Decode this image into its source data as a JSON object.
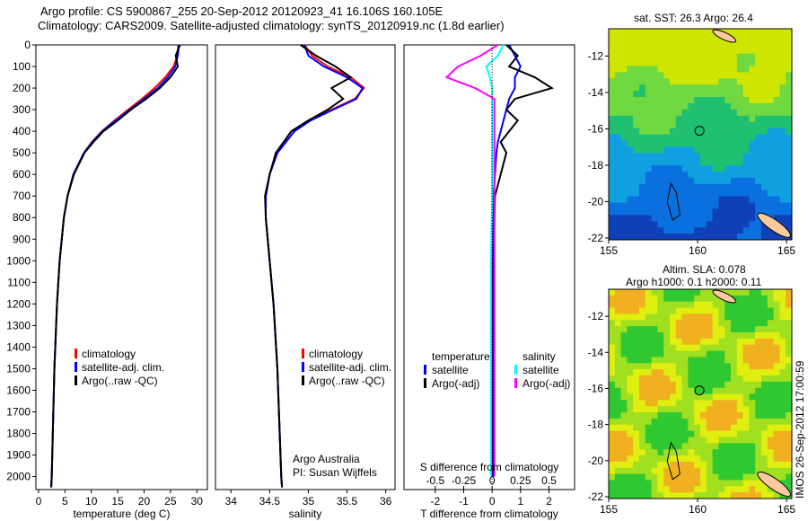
{
  "title": {
    "line1": "Argo profile: CS 5900867_255 20-Sep-2012 20120923_41 16.106S 160.105E",
    "line2": "Climatology: CARS2009. Satellite-adjusted climatology: synTS_20120919.nc (1.8d earlier)"
  },
  "credit": {
    "org": "Argo Australia",
    "pi": "PI: Susan Wijffels"
  },
  "timestamp": "IMOS 26-Sep-2012 17:00:59",
  "colors": {
    "climatology": "#ff0000",
    "satellite": "#0000ff",
    "argo": "#000000",
    "s_satellite": "#00ffff",
    "s_argo": "#ff00ff"
  },
  "chart_data": [
    {
      "type": "line",
      "name": "temperature",
      "xlabel": "temperature (deg C)",
      "xlim": [
        -0.5,
        32
      ],
      "ylim": [
        0,
        2060
      ],
      "yticks": [
        0,
        100,
        200,
        300,
        400,
        500,
        600,
        700,
        800,
        900,
        1000,
        1100,
        1200,
        1300,
        1400,
        1500,
        1600,
        1700,
        1800,
        1900,
        2000
      ],
      "xticks": [
        0,
        5,
        10,
        15,
        20,
        25,
        30
      ],
      "legend": [
        "climatology",
        "satellite-adj. clim.",
        "Argo(..raw -QC)"
      ],
      "depth": [
        0,
        50,
        100,
        150,
        200,
        250,
        300,
        350,
        400,
        450,
        500,
        600,
        700,
        800,
        1000,
        1200,
        1500,
        2000,
        2050
      ],
      "series": [
        {
          "name": "climatology",
          "color": "#ff0000",
          "values": [
            26.5,
            26.3,
            25.6,
            24.0,
            22.0,
            19.6,
            17.0,
            14.4,
            12.0,
            10.1,
            8.6,
            6.6,
            5.5,
            4.8,
            4.0,
            3.5,
            3.0,
            2.5,
            2.4
          ]
        },
        {
          "name": "satellite-adj. clim.",
          "color": "#0000ff",
          "values": [
            26.6,
            26.4,
            25.9,
            24.5,
            22.6,
            20.0,
            17.3,
            14.6,
            12.1,
            10.2,
            8.6,
            6.6,
            5.5,
            4.8,
            4.0,
            3.5,
            3.0,
            2.5,
            2.4
          ]
        },
        {
          "name": "Argo",
          "color": "#000000",
          "values": [
            26.8,
            26.0,
            26.4,
            25.0,
            23.0,
            20.4,
            17.5,
            15.0,
            12.3,
            10.4,
            8.7,
            6.7,
            5.5,
            4.8,
            4.0,
            3.5,
            3.0,
            2.5,
            2.4
          ]
        }
      ]
    },
    {
      "type": "line",
      "name": "salinity",
      "xlabel": "salinity",
      "xlim": [
        33.8,
        36.12
      ],
      "ylim": [
        0,
        2060
      ],
      "xticks": [
        34,
        34.5,
        35,
        35.5,
        36
      ],
      "legend": [
        "climatology",
        "satellite-adj. clim.",
        "Argo(..raw -QC)"
      ],
      "depth": [
        0,
        50,
        100,
        150,
        200,
        250,
        300,
        350,
        400,
        500,
        600,
        700,
        800,
        1000,
        1200,
        1500,
        2000,
        2050
      ],
      "series": [
        {
          "name": "climatology",
          "color": "#ff0000",
          "values": [
            34.95,
            35.05,
            35.25,
            35.55,
            35.72,
            35.6,
            35.3,
            35.02,
            34.82,
            34.6,
            34.5,
            34.45,
            34.45,
            34.5,
            34.55,
            34.6,
            34.65,
            34.66
          ]
        },
        {
          "name": "satellite-adj. clim.",
          "color": "#0000ff",
          "values": [
            34.95,
            35.0,
            35.2,
            35.5,
            35.7,
            35.62,
            35.32,
            35.03,
            34.82,
            34.6,
            34.5,
            34.45,
            34.45,
            34.5,
            34.55,
            34.6,
            34.65,
            34.66
          ]
        },
        {
          "name": "Argo",
          "color": "#000000",
          "values": [
            34.9,
            35.1,
            35.35,
            35.55,
            35.3,
            35.45,
            35.25,
            35.0,
            34.78,
            34.58,
            34.5,
            34.44,
            34.45,
            34.5,
            34.55,
            34.6,
            34.65,
            34.66
          ]
        }
      ]
    },
    {
      "type": "line",
      "name": "differences",
      "xlabel": "T difference from climatology",
      "x2label": "S difference from climatology",
      "xlim": [
        -3.1,
        2.9
      ],
      "ylim": [
        0,
        2060
      ],
      "xticks": [
        -2,
        -1,
        0,
        1,
        2
      ],
      "x2ticks": [
        -0.5,
        -0.25,
        0,
        0.25,
        0.5
      ],
      "legend": {
        "temperature": "temperature",
        "salinity": "salinity",
        "items": [
          "satellite",
          "Argo(-adj)",
          "satellite",
          "Argo(-adj)"
        ]
      },
      "depth": [
        0,
        50,
        100,
        150,
        200,
        250,
        300,
        350,
        400,
        450,
        500,
        600,
        700,
        1000,
        1500,
        2000
      ],
      "series": [
        {
          "name": "T satellite",
          "color": "#0000ff",
          "values": [
            0.6,
            0.8,
            1.0,
            0.8,
            0.8,
            0.6,
            0.5,
            0.4,
            0.3,
            0.2,
            0.15,
            0.1,
            0.05,
            0.0,
            0.0,
            0.0
          ]
        },
        {
          "name": "T Argo(-adj)",
          "color": "#000000",
          "values": [
            0.5,
            0.9,
            0.6,
            1.5,
            2.1,
            0.8,
            0.5,
            0.9,
            0.6,
            0.3,
            0.5,
            0.3,
            0.1,
            0.05,
            0.05,
            0.05
          ]
        },
        {
          "name": "S satellite",
          "color": "#00ffff",
          "values": [
            0.1,
            0.05,
            -0.05,
            -0.02,
            0.0,
            0.0,
            0.0,
            0.0,
            0.0,
            0.0,
            0.0,
            0.0,
            0.0,
            -0.01,
            -0.01,
            -0.01
          ]
        },
        {
          "name": "S Argo(-adj)",
          "color": "#ff00ff",
          "values": [
            0.05,
            -0.1,
            -0.3,
            -0.4,
            -0.15,
            0.02,
            0.02,
            0.02,
            0.02,
            0.02,
            0.02,
            0.02,
            0.02,
            0.02,
            0.02,
            0.02
          ]
        }
      ]
    },
    {
      "type": "heatmap",
      "name": "sst-map",
      "title": "sat. SST: 26.3 Argo: 26.4",
      "xlim": [
        155,
        165.3
      ],
      "ylim": [
        -22.1,
        -10.5
      ],
      "xticks": [
        155,
        160,
        165
      ],
      "yticks": [
        -12,
        -14,
        -16,
        -18,
        -20,
        -22
      ],
      "argo_position": [
        160.105,
        -16.106
      ]
    },
    {
      "type": "heatmap",
      "name": "sla-map",
      "title": "Altim. SLA: 0.078",
      "subtitle": "Argo h1000: 0.1 h2000: 0.11",
      "xlim": [
        155,
        165.3
      ],
      "ylim": [
        -22.1,
        -10.5
      ],
      "xticks": [
        155,
        160,
        165
      ],
      "yticks": [
        -12,
        -14,
        -16,
        -18,
        -20,
        -22
      ],
      "argo_position": [
        160.105,
        -16.106
      ]
    }
  ]
}
